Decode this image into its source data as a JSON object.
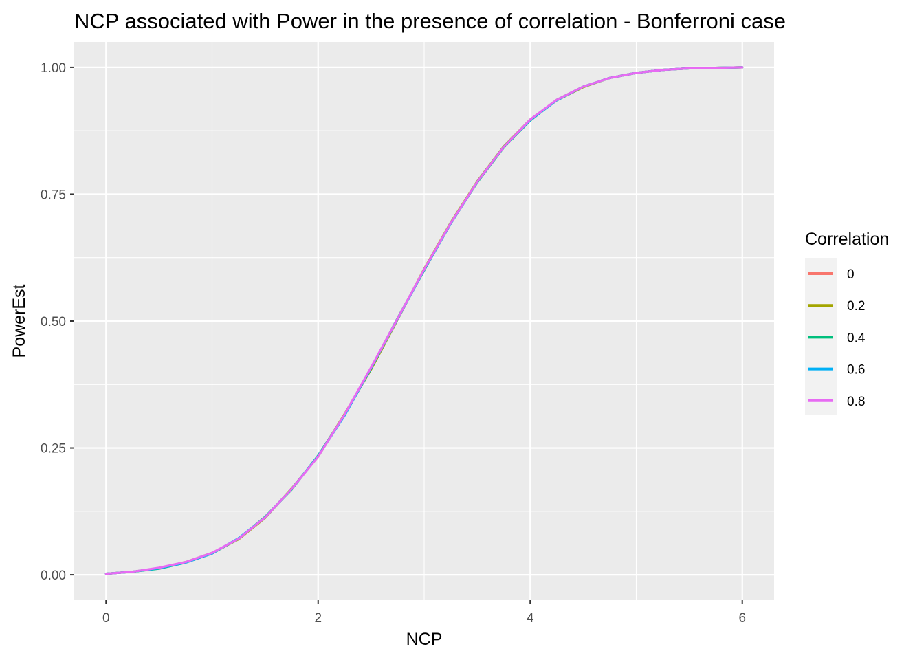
{
  "chart_data": {
    "type": "line",
    "title": "NCP associated with Power in the presence of correlation - Bonferroni case",
    "xlabel": "NCP",
    "ylabel": "PowerEst",
    "xlim": [
      -0.3,
      6.3
    ],
    "ylim": [
      -0.05,
      1.05
    ],
    "x_ticks": [
      0,
      2,
      4,
      6
    ],
    "x_tick_labels": [
      "0",
      "2",
      "4",
      "6"
    ],
    "y_ticks": [
      0,
      0.25,
      0.5,
      0.75,
      1
    ],
    "y_tick_labels": [
      "0.00",
      "0.25",
      "0.50",
      "0.75",
      "1.00"
    ],
    "grid": true,
    "legend": {
      "title": "Correlation",
      "position": "right"
    },
    "x": [
      0,
      0.25,
      0.5,
      0.75,
      1,
      1.25,
      1.5,
      1.75,
      2,
      2.25,
      2.5,
      2.75,
      3,
      3.25,
      3.5,
      3.75,
      4,
      4.25,
      4.5,
      4.75,
      5,
      5.25,
      5.5,
      5.75,
      6
    ],
    "series": [
      {
        "name": "0",
        "color": "#F8766D",
        "values": [
          0.002,
          0.006,
          0.013,
          0.024,
          0.042,
          0.071,
          0.113,
          0.169,
          0.234,
          0.316,
          0.408,
          0.505,
          0.601,
          0.692,
          0.774,
          0.843,
          0.896,
          0.936,
          0.962,
          0.979,
          0.989,
          0.995,
          0.998,
          0.999,
          1.0
        ]
      },
      {
        "name": "0.2",
        "color": "#A3A500",
        "values": [
          0.002,
          0.006,
          0.013,
          0.025,
          0.043,
          0.07,
          0.112,
          0.17,
          0.233,
          0.317,
          0.405,
          0.503,
          0.603,
          0.694,
          0.775,
          0.844,
          0.897,
          0.935,
          0.961,
          0.979,
          0.989,
          0.995,
          0.998,
          0.999,
          1.0
        ]
      },
      {
        "name": "0.4",
        "color": "#00BF7D",
        "values": [
          0.002,
          0.006,
          0.012,
          0.024,
          0.042,
          0.071,
          0.114,
          0.168,
          0.235,
          0.315,
          0.407,
          0.506,
          0.6,
          0.693,
          0.773,
          0.842,
          0.895,
          0.936,
          0.962,
          0.979,
          0.989,
          0.995,
          0.998,
          0.999,
          1.0
        ]
      },
      {
        "name": "0.6",
        "color": "#00B0F6",
        "values": [
          0.002,
          0.006,
          0.013,
          0.024,
          0.042,
          0.072,
          0.113,
          0.169,
          0.234,
          0.314,
          0.408,
          0.504,
          0.601,
          0.692,
          0.774,
          0.843,
          0.896,
          0.935,
          0.962,
          0.979,
          0.989,
          0.995,
          0.998,
          0.999,
          1.0
        ]
      },
      {
        "name": "0.8",
        "color": "#E76BF3",
        "values": [
          0.002,
          0.006,
          0.014,
          0.025,
          0.043,
          0.071,
          0.113,
          0.169,
          0.233,
          0.316,
          0.409,
          0.505,
          0.602,
          0.693,
          0.774,
          0.843,
          0.897,
          0.936,
          0.962,
          0.979,
          0.989,
          0.995,
          0.998,
          0.999,
          1.0
        ]
      }
    ]
  }
}
